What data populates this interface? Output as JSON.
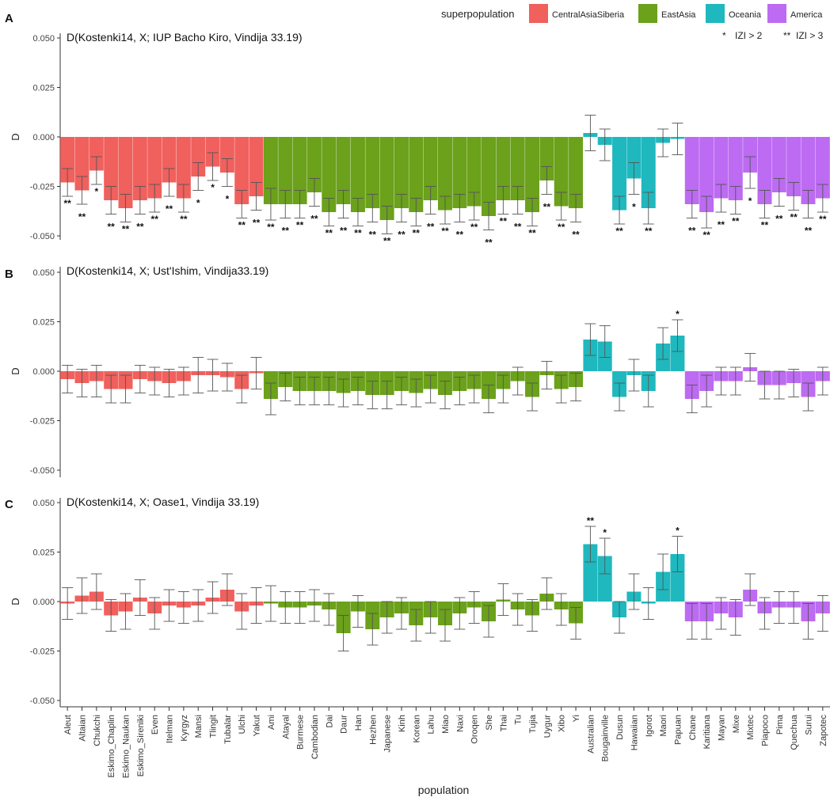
{
  "legend": {
    "title": "superpopulation",
    "items": [
      {
        "label": "CentralAsiaSiberia",
        "color": "#F0605D"
      },
      {
        "label": "EastAsia",
        "color": "#6BA11B"
      },
      {
        "label": "Oceania",
        "color": "#1FB8BE"
      },
      {
        "label": "America",
        "color": "#BC6BF2"
      }
    ],
    "sig1_symbol": "*",
    "sig1_label": "IZI > 2",
    "sig2_symbol": "**",
    "sig2_label": "IZI > 3"
  },
  "xlabel": "population",
  "chart_data": [
    {
      "type": "bar",
      "panel": "A",
      "title": "D(Kostenki14, X; IUP Bacho Kiro, Vindija 33.19)",
      "ylabel": "D",
      "ylim": [
        -0.052,
        0.052
      ],
      "yticks": [
        "0.050",
        "0.025",
        "0.000",
        "-0.025",
        "-0.050"
      ],
      "categories": [
        "Aleut",
        "Altaian",
        "Chukchi",
        "Eskimo_Chaplin",
        "Eskimo_Naukan",
        "Eskimo_Sireniki",
        "Even",
        "Itelman",
        "Kyrgyz",
        "Mansi",
        "Tlingit",
        "Tubalar",
        "Ulchi",
        "Yakut",
        "Ami",
        "Atayal",
        "Burmese",
        "Cambodian",
        "Dai",
        "Daur",
        "Han",
        "Hezhen",
        "Japanese",
        "Kinh",
        "Korean",
        "Lahu",
        "Miao",
        "Naxi",
        "Oroqen",
        "She",
        "Thai",
        "Tu",
        "Tujia",
        "Uygur",
        "Xibo",
        "Yi",
        "Australian",
        "Bougainville",
        "Dusun",
        "Hawaiian",
        "Igorot",
        "Maori",
        "Papuan",
        "Chane",
        "Karitiana",
        "Mayan",
        "Mixe",
        "Mixtec",
        "Piapoco",
        "Pima",
        "Quechua",
        "Surui",
        "Zapotec"
      ],
      "groups": [
        "CentralAsiaSiberia",
        "CentralAsiaSiberia",
        "CentralAsiaSiberia",
        "CentralAsiaSiberia",
        "CentralAsiaSiberia",
        "CentralAsiaSiberia",
        "CentralAsiaSiberia",
        "CentralAsiaSiberia",
        "CentralAsiaSiberia",
        "CentralAsiaSiberia",
        "CentralAsiaSiberia",
        "CentralAsiaSiberia",
        "CentralAsiaSiberia",
        "CentralAsiaSiberia",
        "EastAsia",
        "EastAsia",
        "EastAsia",
        "EastAsia",
        "EastAsia",
        "EastAsia",
        "EastAsia",
        "EastAsia",
        "EastAsia",
        "EastAsia",
        "EastAsia",
        "EastAsia",
        "EastAsia",
        "EastAsia",
        "EastAsia",
        "EastAsia",
        "EastAsia",
        "EastAsia",
        "EastAsia",
        "EastAsia",
        "EastAsia",
        "EastAsia",
        "Oceania",
        "Oceania",
        "Oceania",
        "Oceania",
        "Oceania",
        "Oceania",
        "Oceania",
        "America",
        "America",
        "America",
        "America",
        "America",
        "America",
        "America",
        "America",
        "America",
        "America"
      ],
      "values": [
        -0.023,
        -0.027,
        -0.017,
        -0.032,
        -0.036,
        -0.032,
        -0.031,
        -0.023,
        -0.031,
        -0.02,
        -0.015,
        -0.018,
        -0.034,
        -0.03,
        -0.034,
        -0.034,
        -0.034,
        -0.028,
        -0.038,
        -0.034,
        -0.038,
        -0.036,
        -0.042,
        -0.036,
        -0.038,
        -0.032,
        -0.037,
        -0.036,
        -0.035,
        -0.04,
        -0.032,
        -0.032,
        -0.038,
        -0.022,
        -0.035,
        -0.036,
        0.002,
        -0.004,
        -0.037,
        -0.021,
        -0.036,
        -0.003,
        -0.001,
        -0.034,
        -0.038,
        -0.031,
        -0.032,
        -0.018,
        -0.034,
        -0.028,
        -0.03,
        -0.034,
        -0.031
      ],
      "errors": [
        0.007,
        0.007,
        0.007,
        0.007,
        0.007,
        0.007,
        0.007,
        0.007,
        0.007,
        0.007,
        0.007,
        0.007,
        0.007,
        0.007,
        0.008,
        0.007,
        0.007,
        0.007,
        0.007,
        0.007,
        0.007,
        0.007,
        0.007,
        0.007,
        0.007,
        0.007,
        0.007,
        0.007,
        0.007,
        0.007,
        0.007,
        0.007,
        0.007,
        0.007,
        0.007,
        0.007,
        0.009,
        0.008,
        0.007,
        0.008,
        0.008,
        0.007,
        0.008,
        0.007,
        0.008,
        0.007,
        0.007,
        0.008,
        0.007,
        0.007,
        0.007,
        0.007,
        0.007
      ],
      "significance": [
        "**",
        "**",
        "*",
        "**",
        "**",
        "**",
        "**",
        "**",
        "**",
        "*",
        "*",
        "*",
        "**",
        "**",
        "**",
        "**",
        "**",
        "**",
        "**",
        "**",
        "**",
        "**",
        "**",
        "**",
        "**",
        "**",
        "**",
        "**",
        "**",
        "**",
        "**",
        "**",
        "**",
        "**",
        "**",
        "**",
        "",
        "",
        "**",
        "*",
        "**",
        "",
        "",
        "**",
        "**",
        "**",
        "**",
        "*",
        "**",
        "**",
        "**",
        "**",
        "**"
      ]
    },
    {
      "type": "bar",
      "panel": "B",
      "title": "D(Kostenki14, X; Ust'Ishim, Vindija33.19)",
      "ylabel": "D",
      "ylim": [
        -0.052,
        0.052
      ],
      "yticks": [
        "0.050",
        "0.025",
        "0.000",
        "-0.025",
        "-0.050"
      ],
      "values": [
        -0.004,
        -0.006,
        -0.005,
        -0.009,
        -0.009,
        -0.004,
        -0.005,
        -0.006,
        -0.005,
        -0.002,
        -0.002,
        -0.003,
        -0.009,
        -0.001,
        -0.014,
        -0.008,
        -0.01,
        -0.01,
        -0.01,
        -0.011,
        -0.01,
        -0.012,
        -0.012,
        -0.01,
        -0.011,
        -0.009,
        -0.012,
        -0.01,
        -0.009,
        -0.014,
        -0.009,
        -0.005,
        -0.013,
        -0.002,
        -0.009,
        -0.008,
        0.016,
        0.015,
        -0.013,
        -0.002,
        -0.01,
        0.014,
        0.018,
        -0.014,
        -0.01,
        -0.005,
        -0.005,
        0.002,
        -0.007,
        -0.007,
        -0.006,
        -0.013,
        -0.005
      ],
      "errors": [
        0.007,
        0.007,
        0.008,
        0.007,
        0.007,
        0.007,
        0.007,
        0.007,
        0.007,
        0.009,
        0.008,
        0.007,
        0.007,
        0.008,
        0.008,
        0.007,
        0.007,
        0.007,
        0.007,
        0.007,
        0.007,
        0.007,
        0.007,
        0.007,
        0.007,
        0.007,
        0.007,
        0.007,
        0.007,
        0.007,
        0.007,
        0.007,
        0.007,
        0.007,
        0.007,
        0.007,
        0.008,
        0.008,
        0.007,
        0.008,
        0.008,
        0.008,
        0.008,
        0.007,
        0.008,
        0.007,
        0.007,
        0.007,
        0.007,
        0.007,
        0.007,
        0.007,
        0.007
      ],
      "significance": [
        "",
        "",
        "",
        "",
        "",
        "",
        "",
        "",
        "",
        "",
        "",
        "",
        "",
        "",
        "",
        "",
        "",
        "",
        "",
        "",
        "",
        "",
        "",
        "",
        "",
        "",
        "",
        "",
        "",
        "",
        "",
        "",
        "",
        "",
        "",
        "",
        "",
        "",
        "",
        "",
        "",
        "",
        "*",
        "",
        "",
        "",
        "",
        "",
        "",
        "",
        "",
        "",
        ""
      ]
    },
    {
      "type": "bar",
      "panel": "C",
      "title": "D(Kostenki14, X; Oase1, Vindija 33.19)",
      "ylabel": "D",
      "ylim": [
        -0.052,
        0.052
      ],
      "yticks": [
        "0.050",
        "0.025",
        "0.000",
        "-0.025",
        "-0.050"
      ],
      "values": [
        -0.001,
        0.003,
        0.005,
        -0.007,
        -0.005,
        0.002,
        -0.006,
        -0.002,
        -0.003,
        -0.002,
        0.002,
        0.006,
        -0.005,
        -0.002,
        -0.001,
        -0.003,
        -0.003,
        -0.002,
        -0.004,
        -0.016,
        -0.005,
        -0.014,
        -0.008,
        -0.006,
        -0.012,
        -0.008,
        -0.012,
        -0.006,
        -0.003,
        -0.01,
        0.001,
        -0.004,
        -0.007,
        0.004,
        -0.004,
        -0.011,
        0.029,
        0.023,
        -0.008,
        0.005,
        -0.001,
        0.015,
        0.024,
        -0.01,
        -0.01,
        -0.006,
        -0.008,
        0.006,
        -0.006,
        -0.003,
        -0.003,
        -0.01,
        -0.006
      ],
      "errors": [
        0.008,
        0.009,
        0.009,
        0.008,
        0.009,
        0.009,
        0.008,
        0.008,
        0.008,
        0.008,
        0.008,
        0.008,
        0.009,
        0.009,
        0.009,
        0.008,
        0.008,
        0.008,
        0.008,
        0.009,
        0.008,
        0.008,
        0.008,
        0.008,
        0.008,
        0.008,
        0.008,
        0.008,
        0.008,
        0.008,
        0.008,
        0.008,
        0.008,
        0.008,
        0.008,
        0.008,
        0.009,
        0.009,
        0.008,
        0.009,
        0.008,
        0.009,
        0.009,
        0.009,
        0.009,
        0.008,
        0.009,
        0.008,
        0.008,
        0.008,
        0.008,
        0.009,
        0.009
      ],
      "significance": [
        "",
        "",
        "",
        "",
        "",
        "",
        "",
        "",
        "",
        "",
        "",
        "",
        "",
        "",
        "",
        "",
        "",
        "",
        "",
        "",
        "",
        "",
        "",
        "",
        "",
        "",
        "",
        "",
        "",
        "",
        "",
        "",
        "",
        "",
        "",
        "",
        "**",
        "*",
        "",
        "",
        "",
        "",
        "*",
        "",
        "",
        "",
        "",
        "",
        "",
        "",
        "",
        "",
        ""
      ]
    }
  ]
}
